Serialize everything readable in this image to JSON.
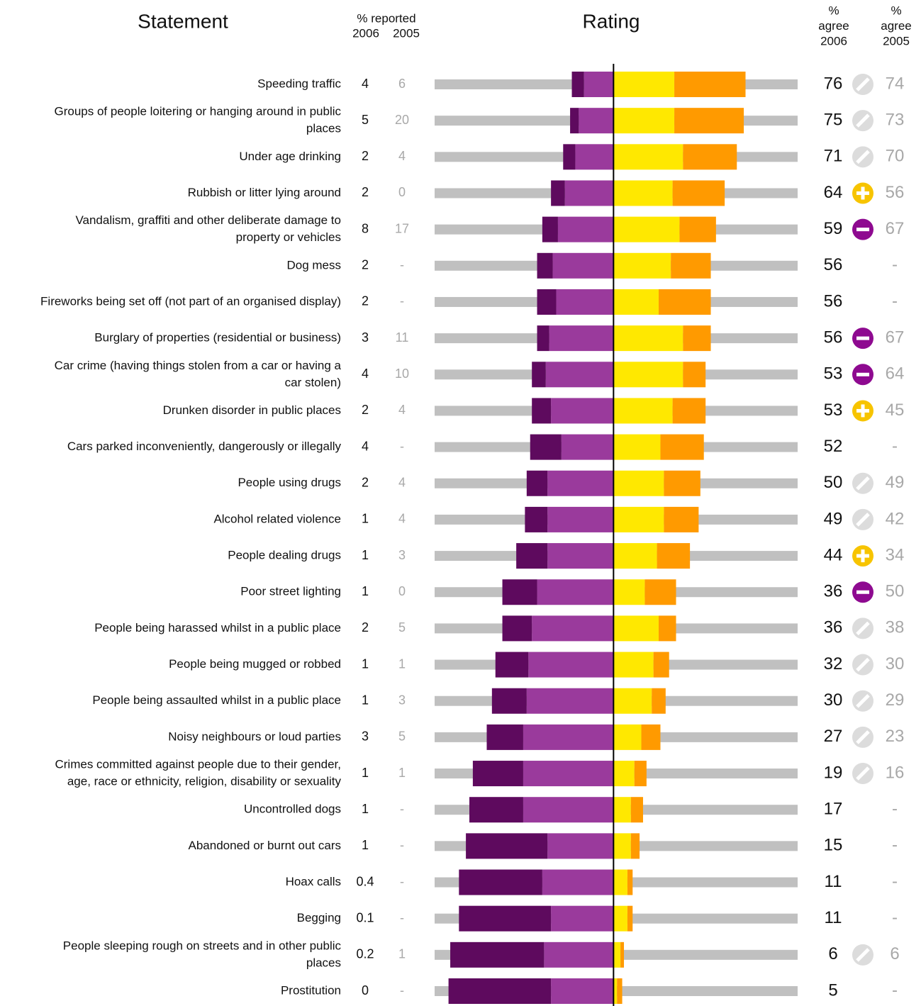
{
  "chart_data": {
    "type": "diverging_bar",
    "headers": {
      "statement": "Statement",
      "reported": "% reported",
      "reported_2006": "2006",
      "reported_2005": "2005",
      "rating": "Rating",
      "agree_2006": [
        "%",
        "agree",
        "2006"
      ],
      "agree_2005": [
        "%",
        "agree",
        "2005"
      ]
    },
    "missing_label": "-",
    "statements": [
      [
        "Speeding traffic"
      ],
      [
        "Groups of people loitering or hanging around in public",
        "places"
      ],
      [
        "Under age drinking"
      ],
      [
        "Rubbish or litter lying around"
      ],
      [
        "Vandalism, graffiti and other deliberate damage to",
        "property or vehicles"
      ],
      [
        "Dog mess"
      ],
      [
        "Fireworks being set off (not part of an organised display)"
      ],
      [
        "Burglary of properties (residential or business)"
      ],
      [
        "Car crime (having things stolen from a car or having a",
        "car stolen)"
      ],
      [
        "Drunken disorder in public places"
      ],
      [
        "Cars parked inconveniently, dangerously or illegally"
      ],
      [
        "People using drugs"
      ],
      [
        "Alcohol related violence"
      ],
      [
        "People dealing drugs"
      ],
      [
        "Poor street lighting"
      ],
      [
        "People being harassed whilst in a public place"
      ],
      [
        "People being mugged or robbed"
      ],
      [
        "People being assaulted whilst in a public place"
      ],
      [
        "Noisy neighbours or loud parties"
      ],
      [
        "Crimes committed against people due to their gender,",
        "age, race or ethnicity, religion, disability or sexuality"
      ],
      [
        "Uncontrolled dogs"
      ],
      [
        "Abandoned or burnt out cars"
      ],
      [
        "Hoax calls"
      ],
      [
        "Begging"
      ],
      [
        "People sleeping rough on streets and in other public",
        "places"
      ],
      [
        "Prostitution"
      ]
    ],
    "reported_2006": [
      4,
      5,
      2,
      2,
      8,
      2,
      2,
      3,
      4,
      2,
      4,
      2,
      1,
      1,
      1,
      2,
      1,
      1,
      3,
      1,
      1,
      1,
      0.4,
      0.1,
      0.2,
      0
    ],
    "reported_2005": [
      6,
      20,
      4,
      0,
      17,
      null,
      null,
      11,
      10,
      4,
      null,
      4,
      4,
      3,
      0,
      5,
      1,
      3,
      5,
      1,
      null,
      null,
      null,
      null,
      1,
      null
    ],
    "agree_2006": [
      76,
      75,
      71,
      64,
      59,
      56,
      56,
      56,
      53,
      53,
      52,
      50,
      49,
      44,
      36,
      36,
      32,
      30,
      27,
      19,
      17,
      15,
      11,
      11,
      6,
      5
    ],
    "change": [
      "same",
      "same",
      "same",
      "up",
      "down",
      null,
      null,
      "down",
      "down",
      "up",
      null,
      "same",
      "same",
      "up",
      "down",
      "same",
      "same",
      "same",
      "same",
      "same",
      null,
      null,
      null,
      null,
      "same",
      null
    ],
    "agree_2005": [
      74,
      73,
      70,
      56,
      67,
      null,
      null,
      67,
      64,
      45,
      null,
      49,
      42,
      34,
      50,
      38,
      30,
      29,
      23,
      16,
      null,
      null,
      null,
      null,
      6,
      null
    ],
    "xlim": [
      -103,
      106
    ],
    "track_color": "#c0c0c0",
    "change_colors": {
      "same": "#dcdcdc",
      "up": "#f7c400",
      "down": "#8e0a90"
    },
    "series": [
      {
        "color": "#5e0a5e",
        "direction": "left",
        "values": [
          7,
          5,
          7,
          8,
          9,
          9,
          11,
          7,
          8,
          11,
          18,
          12,
          13,
          18,
          20,
          17,
          19,
          20,
          21,
          29,
          31,
          47,
          48,
          53,
          54,
          59
        ]
      },
      {
        "color": "#9a3a9c",
        "direction": "left",
        "values": [
          17,
          20,
          22,
          28,
          32,
          35,
          33,
          37,
          39,
          36,
          30,
          38,
          38,
          38,
          44,
          47,
          49,
          50,
          52,
          52,
          52,
          38,
          41,
          36,
          40,
          36
        ]
      },
      {
        "color": "#ffe800",
        "direction": "right",
        "values": [
          35,
          35,
          40,
          34,
          38,
          33,
          26,
          40,
          40,
          34,
          27,
          29,
          29,
          25,
          18,
          26,
          23,
          22,
          16,
          12,
          10,
          10,
          8,
          8,
          4,
          2
        ]
      },
      {
        "color": "#ff9a00",
        "direction": "right",
        "values": [
          41,
          40,
          31,
          30,
          21,
          23,
          30,
          16,
          13,
          19,
          25,
          21,
          20,
          19,
          18,
          10,
          9,
          8,
          11,
          7,
          7,
          5,
          3,
          3,
          2,
          3
        ]
      }
    ]
  }
}
